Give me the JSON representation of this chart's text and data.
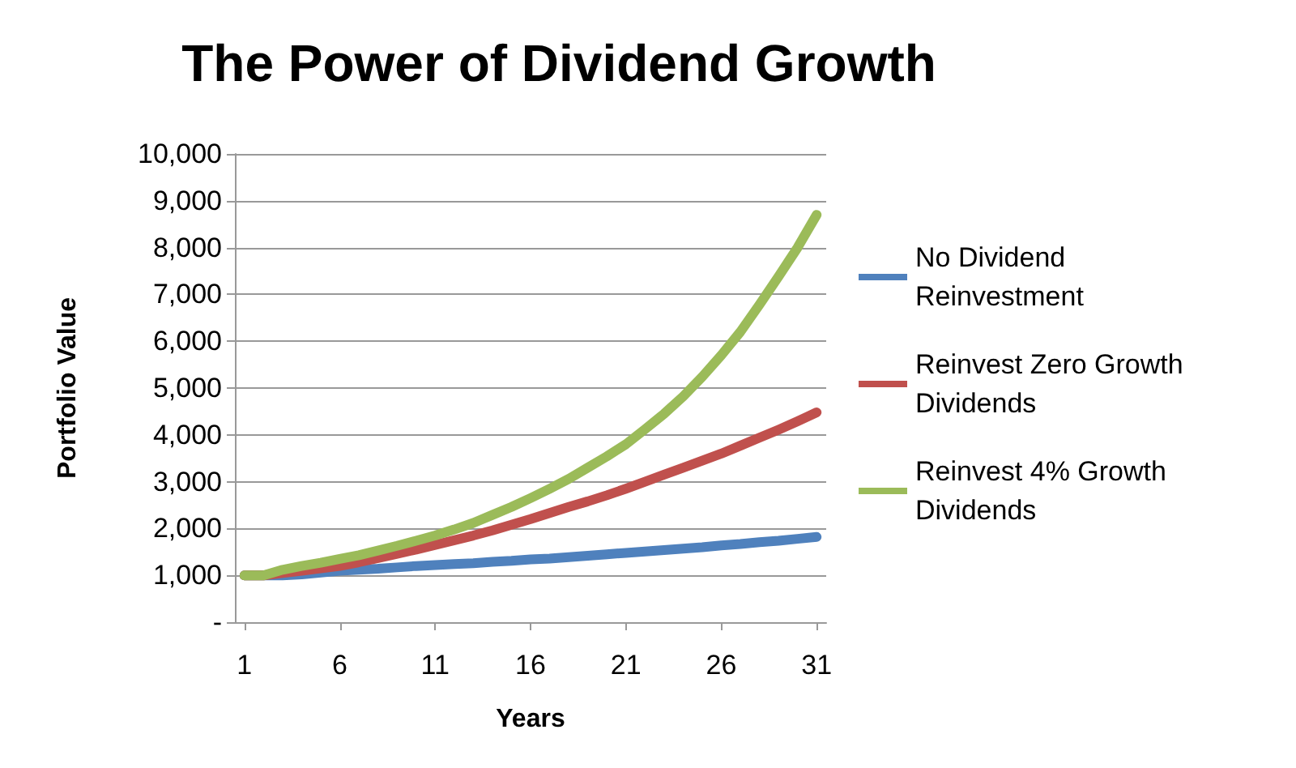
{
  "chart_data": {
    "type": "line",
    "title": "The Power of Dividend Growth",
    "xlabel": "Years",
    "ylabel": "Portfolio Value",
    "x": [
      1,
      2,
      3,
      4,
      5,
      6,
      7,
      8,
      9,
      10,
      11,
      12,
      13,
      14,
      15,
      16,
      17,
      18,
      19,
      20,
      21,
      22,
      23,
      24,
      25,
      26,
      27,
      28,
      29,
      30,
      31
    ],
    "xlim": [
      0.5,
      31.5
    ],
    "xticks": [
      1,
      6,
      11,
      16,
      21,
      26,
      31
    ],
    "series": [
      {
        "name": "No Dividend Reinvestment",
        "color": "#4f81bd",
        "values": [
          1000,
          1000,
          1000,
          1020,
          1060,
          1100,
          1120,
          1140,
          1170,
          1200,
          1220,
          1240,
          1260,
          1290,
          1310,
          1340,
          1360,
          1390,
          1420,
          1450,
          1480,
          1510,
          1540,
          1570,
          1600,
          1640,
          1670,
          1710,
          1740,
          1780,
          1820
        ]
      },
      {
        "name": "Reinvest Zero Growth Dividends",
        "color": "#c0504d",
        "values": [
          1000,
          1000,
          1050,
          1100,
          1150,
          1200,
          1280,
          1370,
          1460,
          1550,
          1650,
          1750,
          1850,
          1960,
          2080,
          2200,
          2330,
          2460,
          2580,
          2710,
          2850,
          3000,
          3150,
          3300,
          3450,
          3600,
          3770,
          3940,
          4110,
          4290,
          4480
        ]
      },
      {
        "name": "Reinvest 4% Growth Dividends",
        "color": "#9bbb59",
        "values": [
          1000,
          1000,
          1120,
          1200,
          1270,
          1350,
          1430,
          1530,
          1630,
          1740,
          1850,
          1980,
          2120,
          2290,
          2460,
          2650,
          2850,
          3060,
          3300,
          3540,
          3800,
          4120,
          4450,
          4820,
          5240,
          5700,
          6200,
          6780,
          7380,
          8000,
          8700
        ]
      }
    ],
    "ylim": [
      0,
      10000
    ],
    "yticks": [
      {
        "value": 0,
        "label": "-"
      },
      {
        "value": 1000,
        "label": "1,000"
      },
      {
        "value": 2000,
        "label": "2,000"
      },
      {
        "value": 3000,
        "label": "3,000"
      },
      {
        "value": 4000,
        "label": "4,000"
      },
      {
        "value": 5000,
        "label": "5,000"
      },
      {
        "value": 6000,
        "label": "6,000"
      },
      {
        "value": 7000,
        "label": "7,000"
      },
      {
        "value": 8000,
        "label": "8,000"
      },
      {
        "value": 9000,
        "label": "9,000"
      },
      {
        "value": 10000,
        "label": "10,000"
      }
    ],
    "grid": "y",
    "legend": "right",
    "marker": "none",
    "line_style": "solid"
  }
}
